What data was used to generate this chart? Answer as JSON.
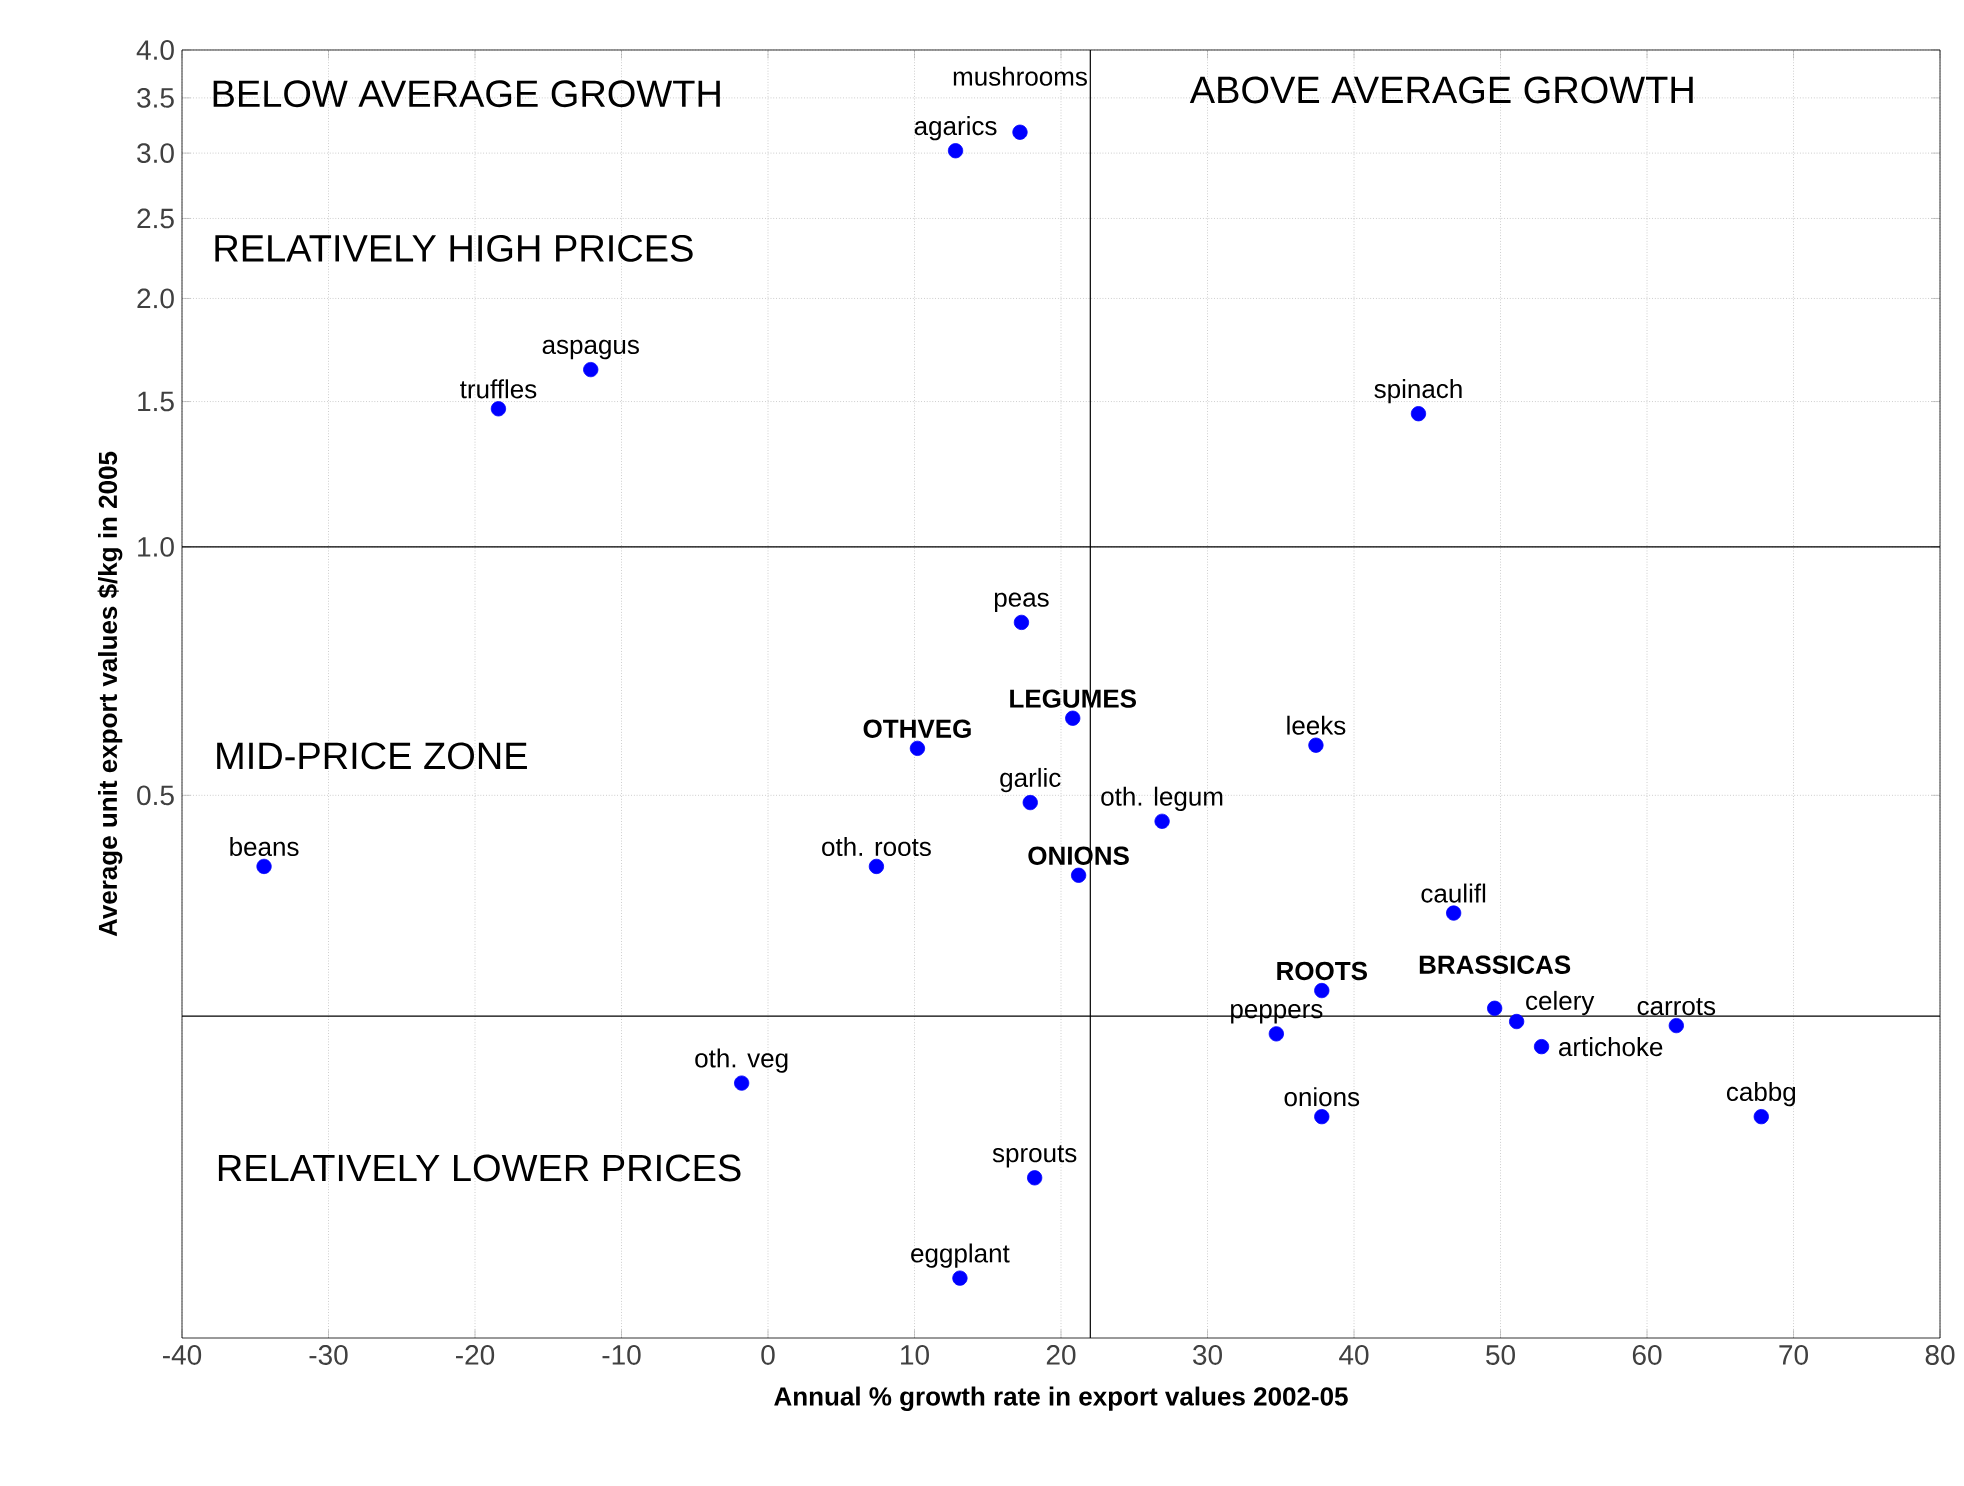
{
  "chart_data": {
    "type": "scatter",
    "xlabel": "Annual % growth rate in export values 2002-05",
    "ylabel": "Average unit export values $/kg in 2005",
    "x": [
      12.8,
      17.2,
      -12.1,
      -18.4,
      44.4,
      17.3,
      20.8,
      10.2,
      37.4,
      17.9,
      26.9,
      21.2,
      7.4,
      -34.4,
      46.8,
      37.8,
      49.6,
      51.1,
      52.8,
      34.7,
      62.0,
      37.8,
      67.8,
      -1.8,
      18.2,
      13.1
    ],
    "values": [
      3.02,
      3.18,
      1.64,
      1.47,
      1.45,
      0.81,
      0.62,
      0.57,
      0.575,
      0.49,
      0.465,
      0.4,
      0.41,
      0.41,
      0.36,
      0.29,
      0.276,
      0.266,
      0.248,
      0.257,
      0.263,
      0.204,
      0.204,
      0.224,
      0.172,
      0.13
    ],
    "color": "#0000ff",
    "marker": "circle",
    "log": "y",
    "grid": true,
    "xlim": [
      -40,
      80
    ],
    "xticks": [
      -40,
      -30,
      -20,
      -10,
      0,
      10,
      20,
      30,
      40,
      50,
      60,
      70,
      80
    ],
    "ylim": [
      0.11,
      4.0
    ],
    "yticks": [
      0.5,
      {
        "value": 1,
        "label": "1.0"
      },
      1.5,
      {
        "value": 2,
        "label": "2.0"
      },
      2.5,
      {
        "value": 3,
        "label": "3.0"
      },
      3.5,
      {
        "value": 4,
        "label": "4.0"
      }
    ],
    "ref_lines": [
      {
        "axis": "x",
        "value": 22,
        "color": "#000000"
      },
      {
        "axis": "y",
        "value": 1.0,
        "color": "#000000"
      },
      {
        "axis": "y",
        "value": 0.27,
        "color": "#000000"
      }
    ],
    "annotations": [
      "BELOW AVERAGE GROWTH",
      "ABOVE AVERAGE GROWTH",
      "RELATIVELY HIGH PRICES",
      "MID-PRICE ZONE",
      "RELATIVELY LOWER PRICES",
      {
        "text": "agarics",
        "x": 12.8,
        "y": 3.02
      },
      {
        "text": "mushrooms",
        "x": 17.2,
        "y": 3.18
      },
      {
        "text": "aspagus",
        "x": -12.1,
        "y": 1.64
      },
      {
        "text": "truffles",
        "x": -18.4,
        "y": 1.47
      },
      {
        "text": "spinach",
        "x": 44.4,
        "y": 1.45
      },
      {
        "text": "peas",
        "x": 17.3,
        "y": 0.81
      },
      {
        "text": "LEGUMES",
        "x": 20.8,
        "y": 0.62
      },
      {
        "text": "OTHVEG",
        "x": 10.2,
        "y": 0.57
      },
      {
        "text": "leeks",
        "x": 37.4,
        "y": 0.575
      },
      {
        "text": "garlic",
        "x": 17.9,
        "y": 0.49
      },
      {
        "text": "oth. legum",
        "x": 26.9,
        "y": 0.465
      },
      {
        "text": "ONIONS",
        "x": 21.2,
        "y": 0.4
      },
      {
        "text": "oth. roots",
        "x": 7.4,
        "y": 0.41
      },
      {
        "text": "beans",
        "x": -34.4,
        "y": 0.41
      },
      {
        "text": "caulifl",
        "x": 46.8,
        "y": 0.36
      },
      {
        "text": "ROOTS",
        "x": 37.8,
        "y": 0.29
      },
      {
        "text": "BRASSICAS",
        "x": 49.6,
        "y": 0.276
      },
      {
        "text": "celery",
        "x": 51.1,
        "y": 0.266
      },
      {
        "text": "artichoke",
        "x": 52.8,
        "y": 0.248
      },
      {
        "text": "peppers",
        "x": 34.7,
        "y": 0.257
      },
      {
        "text": "carrots",
        "x": 62.0,
        "y": 0.263
      },
      {
        "text": "onions",
        "x": 37.8,
        "y": 0.204
      },
      {
        "text": "cabbg",
        "x": 67.8,
        "y": 0.204
      },
      {
        "text": "oth. veg",
        "x": -1.8,
        "y": 0.224
      },
      {
        "text": "sprouts",
        "x": 18.2,
        "y": 0.172
      },
      {
        "text": "eggplant",
        "x": 13.1,
        "y": 0.13
      }
    ]
  }
}
